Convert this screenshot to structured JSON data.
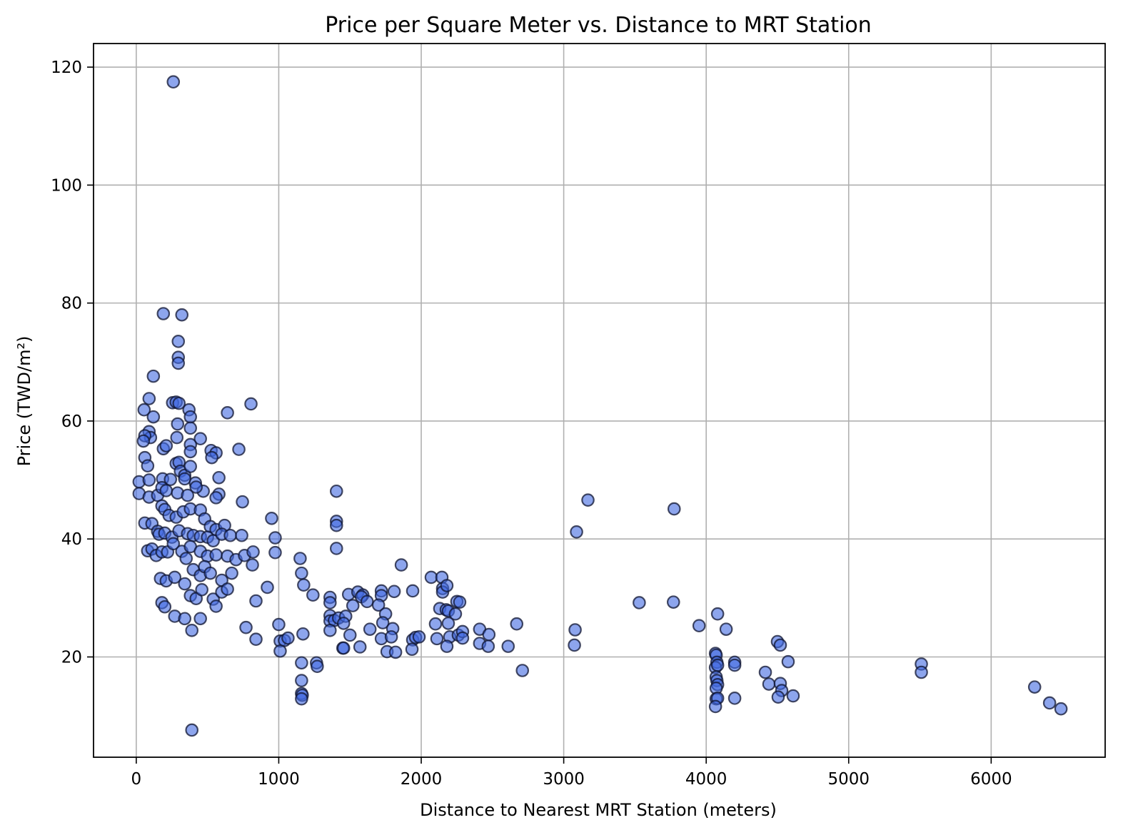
{
  "chart_data": {
    "type": "scatter",
    "title": "Price per Square Meter vs. Distance to MRT Station",
    "xlabel": "Distance to Nearest MRT Station (meters)",
    "ylabel": "Price (TWD/m²)",
    "xlim": [
      -300,
      6800
    ],
    "ylim": [
      3,
      124
    ],
    "xticks": [
      0,
      1000,
      2000,
      3000,
      4000,
      5000,
      6000
    ],
    "yticks": [
      20,
      40,
      60,
      80,
      100,
      120
    ],
    "grid": true,
    "marker_color": "#4169e1",
    "marker_edge_color": "#1a1a2e",
    "points": [
      [
        260,
        117.5
      ],
      [
        190,
        78.2
      ],
      [
        320,
        78
      ],
      [
        295,
        73.5
      ],
      [
        295,
        70.8
      ],
      [
        295,
        69.8
      ],
      [
        120,
        67.6
      ],
      [
        90,
        63.8
      ],
      [
        255,
        63.1
      ],
      [
        280,
        63.2
      ],
      [
        300,
        63
      ],
      [
        805,
        62.9
      ],
      [
        55,
        61.9
      ],
      [
        370,
        61.9
      ],
      [
        380,
        60.7
      ],
      [
        640,
        61.4
      ],
      [
        120,
        60.7
      ],
      [
        290,
        59.5
      ],
      [
        380,
        58.8
      ],
      [
        90,
        58.2
      ],
      [
        100,
        57.2
      ],
      [
        60,
        57.5
      ],
      [
        50,
        56.6
      ],
      [
        450,
        57
      ],
      [
        285,
        57.2
      ],
      [
        190,
        55.3
      ],
      [
        210,
        55.8
      ],
      [
        380,
        56
      ],
      [
        380,
        54.8
      ],
      [
        525,
        55
      ],
      [
        720,
        55.2
      ],
      [
        560,
        54.6
      ],
      [
        530,
        53.8
      ],
      [
        60,
        53.8
      ],
      [
        80,
        52.4
      ],
      [
        280,
        52.8
      ],
      [
        300,
        53
      ],
      [
        310,
        51.5
      ],
      [
        340,
        50.8
      ],
      [
        380,
        52.3
      ],
      [
        580,
        50.4
      ],
      [
        20,
        49.7
      ],
      [
        90,
        50
      ],
      [
        185,
        50.2
      ],
      [
        240,
        50.1
      ],
      [
        340,
        50.2
      ],
      [
        415,
        49.5
      ],
      [
        470,
        48.1
      ],
      [
        420,
        48.8
      ],
      [
        580,
        47.6
      ],
      [
        20,
        47.7
      ],
      [
        90,
        47.1
      ],
      [
        150,
        47.4
      ],
      [
        180,
        48.7
      ],
      [
        210,
        48.2
      ],
      [
        290,
        47.8
      ],
      [
        360,
        47.4
      ],
      [
        560,
        47
      ],
      [
        1405,
        48.1
      ],
      [
        745,
        46.3
      ],
      [
        3170,
        46.6
      ],
      [
        3775,
        45.1
      ],
      [
        60,
        42.7
      ],
      [
        110,
        42.6
      ],
      [
        180,
        45.6
      ],
      [
        200,
        45
      ],
      [
        230,
        44
      ],
      [
        280,
        43.7
      ],
      [
        330,
        44.6
      ],
      [
        380,
        45.1
      ],
      [
        450,
        44.9
      ],
      [
        480,
        43.4
      ],
      [
        520,
        42.1
      ],
      [
        560,
        41.6
      ],
      [
        620,
        42.3
      ],
      [
        950,
        43.5
      ],
      [
        1405,
        43
      ],
      [
        1405,
        42.3
      ],
      [
        3090,
        41.2
      ],
      [
        150,
        41.3
      ],
      [
        160,
        40.8
      ],
      [
        200,
        41
      ],
      [
        250,
        40.3
      ],
      [
        300,
        41.4
      ],
      [
        360,
        40.9
      ],
      [
        400,
        40.6
      ],
      [
        450,
        40.4
      ],
      [
        500,
        40.3
      ],
      [
        540,
        39.7
      ],
      [
        600,
        40.8
      ],
      [
        660,
        40.6
      ],
      [
        740,
        40.6
      ],
      [
        975,
        40.2
      ],
      [
        80,
        38
      ],
      [
        110,
        38.3
      ],
      [
        140,
        37.2
      ],
      [
        180,
        37.8
      ],
      [
        220,
        37.8
      ],
      [
        260,
        39.2
      ],
      [
        320,
        37.9
      ],
      [
        350,
        36.7
      ],
      [
        380,
        38.7
      ],
      [
        450,
        37.9
      ],
      [
        500,
        37.1
      ],
      [
        560,
        37.3
      ],
      [
        640,
        37.1
      ],
      [
        700,
        36.5
      ],
      [
        760,
        37.2
      ],
      [
        820,
        37.8
      ],
      [
        975,
        37.7
      ],
      [
        1405,
        38.4
      ],
      [
        170,
        33.3
      ],
      [
        210,
        32.9
      ],
      [
        270,
        33.5
      ],
      [
        340,
        32.4
      ],
      [
        400,
        34.8
      ],
      [
        450,
        33.8
      ],
      [
        480,
        35.3
      ],
      [
        520,
        34.2
      ],
      [
        600,
        33
      ],
      [
        670,
        34.2
      ],
      [
        815,
        35.6
      ],
      [
        1150,
        36.7
      ],
      [
        1860,
        35.6
      ],
      [
        180,
        29.2
      ],
      [
        200,
        28.5
      ],
      [
        380,
        30.4
      ],
      [
        420,
        29.9
      ],
      [
        460,
        31.4
      ],
      [
        540,
        29.8
      ],
      [
        560,
        28.6
      ],
      [
        600,
        31
      ],
      [
        640,
        31.5
      ],
      [
        840,
        29.5
      ],
      [
        920,
        31.8
      ],
      [
        1160,
        34.2
      ],
      [
        1175,
        32.2
      ],
      [
        1240,
        30.5
      ],
      [
        1360,
        30.1
      ],
      [
        1360,
        29.2
      ],
      [
        1490,
        30.6
      ],
      [
        1555,
        31
      ],
      [
        1590,
        30.5
      ],
      [
        1720,
        31.2
      ],
      [
        1720,
        30.4
      ],
      [
        1810,
        31.1
      ],
      [
        1940,
        31.2
      ],
      [
        2070,
        33.5
      ],
      [
        2145,
        33.5
      ],
      [
        2150,
        31.6
      ],
      [
        2150,
        31
      ],
      [
        2180,
        32.1
      ],
      [
        3530,
        29.2
      ],
      [
        3770,
        29.3
      ],
      [
        270,
        26.9
      ],
      [
        340,
        26.5
      ],
      [
        450,
        26.5
      ],
      [
        770,
        25
      ],
      [
        1360,
        27
      ],
      [
        1360,
        26.1
      ],
      [
        1390,
        26.2
      ],
      [
        1420,
        26.6
      ],
      [
        1470,
        26.9
      ],
      [
        1520,
        28.7
      ],
      [
        1580,
        30.2
      ],
      [
        1620,
        29.4
      ],
      [
        1700,
        28.8
      ],
      [
        1750,
        27.3
      ],
      [
        1730,
        25.8
      ],
      [
        2130,
        28.2
      ],
      [
        2175,
        28
      ],
      [
        2190,
        27.8
      ],
      [
        2250,
        29.4
      ],
      [
        2270,
        29.3
      ],
      [
        2240,
        27.3
      ],
      [
        2670,
        25.6
      ],
      [
        3950,
        25.3
      ],
      [
        4080,
        27.3
      ],
      [
        4140,
        24.7
      ],
      [
        390,
        24.5
      ],
      [
        840,
        23
      ],
      [
        1000,
        25.5
      ],
      [
        1010,
        22.7
      ],
      [
        1040,
        22.8
      ],
      [
        1065,
        23.2
      ],
      [
        1170,
        23.9
      ],
      [
        1360,
        24.5
      ],
      [
        1455,
        25.7
      ],
      [
        1500,
        23.7
      ],
      [
        1640,
        24.7
      ],
      [
        1720,
        23.1
      ],
      [
        1800,
        24.8
      ],
      [
        1790,
        23.4
      ],
      [
        1940,
        22.9
      ],
      [
        1960,
        23.3
      ],
      [
        1985,
        23.4
      ],
      [
        2100,
        25.6
      ],
      [
        2110,
        23.1
      ],
      [
        2190,
        25.7
      ],
      [
        2200,
        23.4
      ],
      [
        2260,
        23.7
      ],
      [
        2290,
        24.3
      ],
      [
        2290,
        23.2
      ],
      [
        2410,
        24.7
      ],
      [
        2475,
        23.8
      ],
      [
        2410,
        22.3
      ],
      [
        3080,
        24.6
      ],
      [
        4500,
        22.6
      ],
      [
        4520,
        22
      ],
      [
        1010,
        21
      ],
      [
        1450,
        21.5
      ],
      [
        1455,
        21.5
      ],
      [
        1570,
        21.7
      ],
      [
        1760,
        20.9
      ],
      [
        1820,
        20.8
      ],
      [
        1935,
        21.3
      ],
      [
        2180,
        21.8
      ],
      [
        2470,
        21.8
      ],
      [
        2610,
        21.8
      ],
      [
        3075,
        22
      ],
      [
        4065,
        20.6
      ],
      [
        4070,
        20.3
      ],
      [
        4075,
        19.1
      ],
      [
        1160,
        19
      ],
      [
        1265,
        19
      ],
      [
        1270,
        18.4
      ],
      [
        4065,
        18.2
      ],
      [
        4080,
        18.6
      ],
      [
        4200,
        19.1
      ],
      [
        4200,
        18.6
      ],
      [
        4575,
        19.2
      ],
      [
        5510,
        18.8
      ],
      [
        5510,
        17.4
      ],
      [
        2710,
        17.7
      ],
      [
        1160,
        16
      ],
      [
        4070,
        16.6
      ],
      [
        4075,
        16
      ],
      [
        4080,
        15.3
      ],
      [
        4070,
        14.7
      ],
      [
        4415,
        17.4
      ],
      [
        4440,
        15.4
      ],
      [
        4520,
        15.5
      ],
      [
        4530,
        14.3
      ],
      [
        4610,
        13.4
      ],
      [
        4505,
        13.2
      ],
      [
        1160,
        13.8
      ],
      [
        1165,
        13.5
      ],
      [
        1160,
        12.9
      ],
      [
        4070,
        12.9
      ],
      [
        4080,
        13
      ],
      [
        4200,
        13
      ],
      [
        4065,
        11.6
      ],
      [
        6305,
        14.9
      ],
      [
        6410,
        12.2
      ],
      [
        6490,
        11.2
      ],
      [
        390,
        7.6
      ]
    ]
  }
}
